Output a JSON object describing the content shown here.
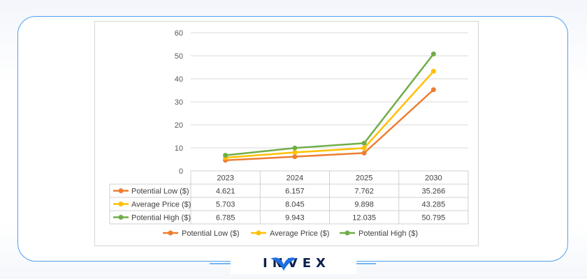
{
  "brand": {
    "logo_text": "INVEX"
  },
  "chart_data": {
    "type": "line",
    "categories": [
      "2023",
      "2024",
      "2025",
      "2030"
    ],
    "ylim": [
      0,
      60
    ],
    "y_ticks": [
      0,
      10,
      20,
      30,
      40,
      50,
      60
    ],
    "grid": true,
    "legend": "bottom",
    "data_table": true,
    "series": [
      {
        "name": "Potential Low ($)",
        "values": [
          4.621,
          6.157,
          7.762,
          35.266
        ],
        "labels": [
          "4.621",
          "6.157",
          "7.762",
          "35.266"
        ],
        "color": "#ed7d31"
      },
      {
        "name": "Average Price ($)",
        "values": [
          5.703,
          8.045,
          9.898,
          43.285
        ],
        "labels": [
          "5.703",
          "8.045",
          "9.898",
          "43.285"
        ],
        "color": "#ffc000"
      },
      {
        "name": "Potential High ($)",
        "values": [
          6.785,
          9.943,
          12.035,
          50.795
        ],
        "labels": [
          "6.785",
          "9.943",
          "12.035",
          "50.795"
        ],
        "color": "#70ad47"
      }
    ]
  }
}
